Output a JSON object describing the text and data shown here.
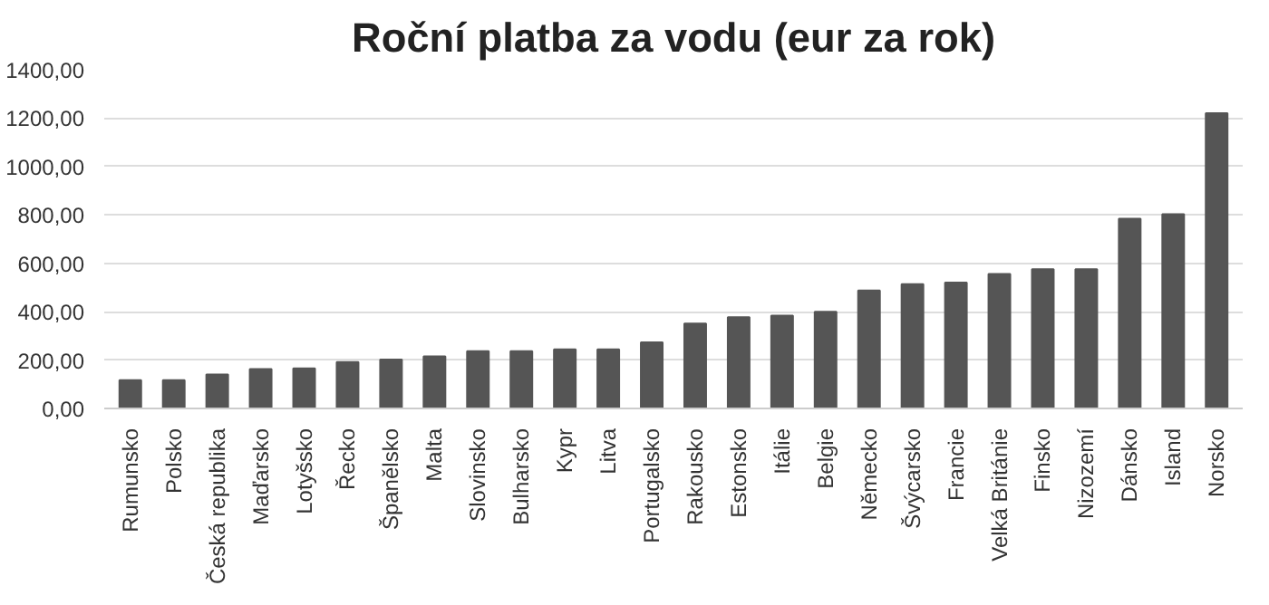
{
  "chart_data": {
    "type": "bar",
    "title": "Roční platba za vodu (eur za rok)",
    "categories": [
      "Rumunsko",
      "Polsko",
      "Česká republika",
      "Maďarsko",
      "Lotyšsko",
      "Řecko",
      "Španělsko",
      "Malta",
      "Slovinsko",
      "Bulharsko",
      "Kypr",
      "Litva",
      "Portugalsko",
      "Rakousko",
      "Estonsko",
      "Itálie",
      "Belgie",
      "Německo",
      "Švýcarsko",
      "Francie",
      "Velká Británie",
      "Finsko",
      "Nizozemí",
      "Dánsko",
      "Island",
      "Norsko"
    ],
    "values": [
      117,
      117,
      140,
      163,
      166,
      192,
      202,
      215,
      237,
      237,
      244,
      244,
      273,
      351,
      377,
      384,
      400,
      488,
      514,
      520,
      556,
      576,
      576,
      784,
      803,
      1220
    ],
    "color": "#555555",
    "ylim": [
      0,
      1400
    ],
    "yticks": [
      {
        "value": 0,
        "label": "0,00"
      },
      {
        "value": 200,
        "label": "200,00"
      },
      {
        "value": 400,
        "label": "400,00"
      },
      {
        "value": 600,
        "label": "600,00"
      },
      {
        "value": 800,
        "label": "800,00"
      },
      {
        "value": 1000,
        "label": "1000,00"
      },
      {
        "value": 1200,
        "label": "1200,00"
      },
      {
        "value": 1400,
        "label": "1400,00"
      }
    ],
    "grid": "y"
  }
}
